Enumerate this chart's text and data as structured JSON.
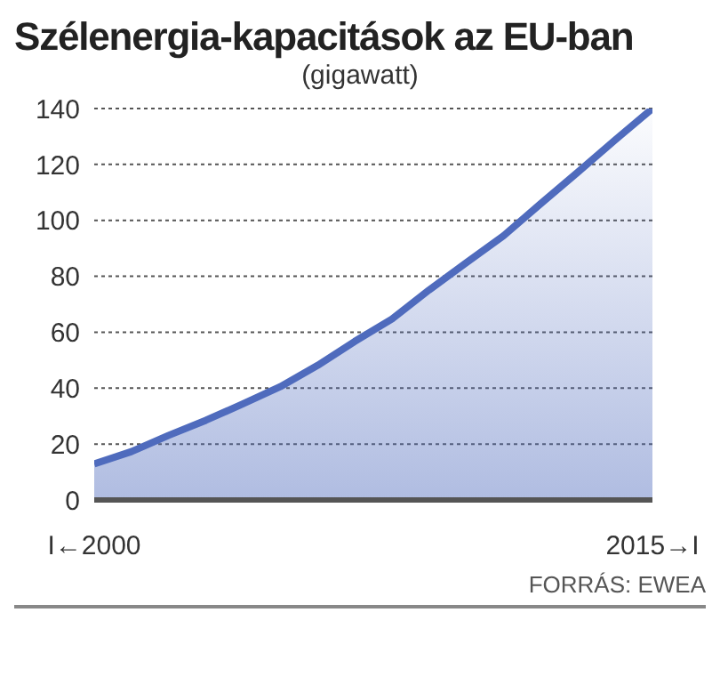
{
  "chart_data": {
    "type": "area",
    "title": "Szélenergia-kapacitások az EU-ban",
    "subtitle": "(gigawatt)",
    "x": [
      2000,
      2001,
      2002,
      2003,
      2004,
      2005,
      2006,
      2007,
      2008,
      2009,
      2010,
      2011,
      2012,
      2013,
      2014,
      2015
    ],
    "series": [
      {
        "color": "#4f6bbd",
        "values": [
          12.9,
          17.3,
          23.1,
          28.5,
          34.4,
          40.5,
          48.1,
          56.7,
          64.7,
          75.1,
          84.9,
          94.5,
          106,
          117.3,
          128.8,
          140
        ]
      }
    ],
    "xlim": [
      2000,
      2015
    ],
    "xticks": [
      {
        "value": 2000,
        "label": "I←2000"
      },
      {
        "value": 2015,
        "label": "2015→I"
      }
    ],
    "ylim": [
      0,
      140
    ],
    "yticks": [
      0,
      20,
      40,
      60,
      80,
      100,
      120,
      140
    ],
    "grid": "y",
    "annotations": [
      "FORRÁS: EWEA"
    ]
  }
}
